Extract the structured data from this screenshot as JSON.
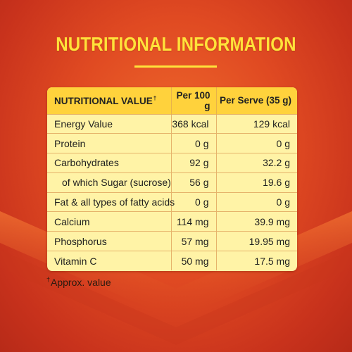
{
  "title": "NUTRITIONAL INFORMATION",
  "colors": {
    "title": "#ffe23a",
    "background": "#e04a22",
    "panel": "#fff3a6",
    "header": "#ffd23c"
  },
  "table": {
    "headers": {
      "name": "NUTRITIONAL VALUE",
      "name_mark": "†",
      "per100": "Per 100 g",
      "perServe": "Per Serve (35 g)"
    },
    "rows": [
      {
        "name": "Energy Value",
        "per100": "368 kcal",
        "perServe": "129 kcal"
      },
      {
        "name": "Protein",
        "per100": "0 g",
        "perServe": "0 g"
      },
      {
        "name": "Carbohydrates",
        "per100": "92 g",
        "perServe": "32.2 g"
      },
      {
        "name": "of which Sugar (sucrose)",
        "per100": "56 g",
        "perServe": "19.6 g"
      },
      {
        "name": "Fat & all types of fatty acids",
        "per100": "0 g",
        "perServe": "0 g"
      },
      {
        "name": "Calcium",
        "per100": "114 mg",
        "perServe": "39.9 mg"
      },
      {
        "name": "Phosphorus",
        "per100": "57 mg",
        "perServe": "19.95 mg"
      },
      {
        "name": "Vitamin C",
        "per100": "50 mg",
        "perServe": "17.5 mg"
      }
    ]
  },
  "footnote": {
    "mark": "†",
    "text": "Approx. value"
  }
}
